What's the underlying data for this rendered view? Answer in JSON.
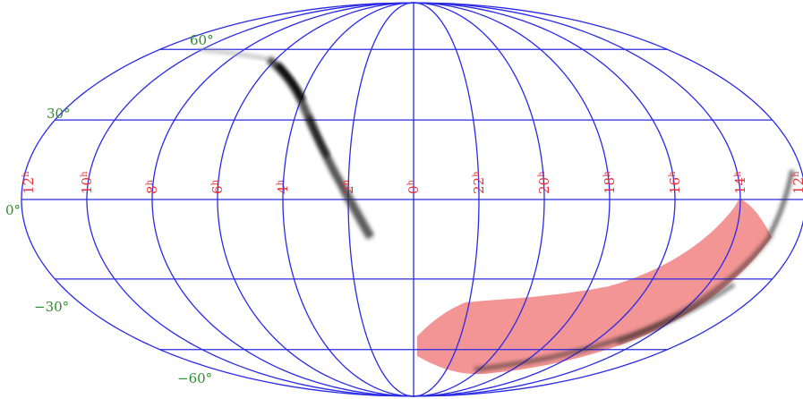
{
  "projection": "Mollweide (all-sky, equatorial)",
  "colors": {
    "grid": "#2a2ae6",
    "ra_labels": "#e8313a",
    "dec_labels": "#2e8b2e",
    "region_fill": "#f08080",
    "posterior": "#000000"
  },
  "ra_labels": [
    "12h",
    "10h",
    "8h",
    "6h",
    "4h",
    "2h",
    "0h",
    "22h",
    "20h",
    "18h",
    "16h",
    "14h",
    "12h"
  ],
  "dec_labels": [
    "60°",
    "30°",
    "0°",
    "−30°",
    "−60°"
  ],
  "ra_label_parts": [
    {
      "num": "12",
      "sup": "h"
    },
    {
      "num": "10",
      "sup": "h"
    },
    {
      "num": "8",
      "sup": "h"
    },
    {
      "num": "6",
      "sup": "h"
    },
    {
      "num": "4",
      "sup": "h"
    },
    {
      "num": "2",
      "sup": "h"
    },
    {
      "num": "0",
      "sup": "h"
    },
    {
      "num": "22",
      "sup": "h"
    },
    {
      "num": "20",
      "sup": "h"
    },
    {
      "num": "18",
      "sup": "h"
    },
    {
      "num": "16",
      "sup": "h"
    },
    {
      "num": "14",
      "sup": "h"
    },
    {
      "num": "12",
      "sup": "h"
    }
  ]
}
